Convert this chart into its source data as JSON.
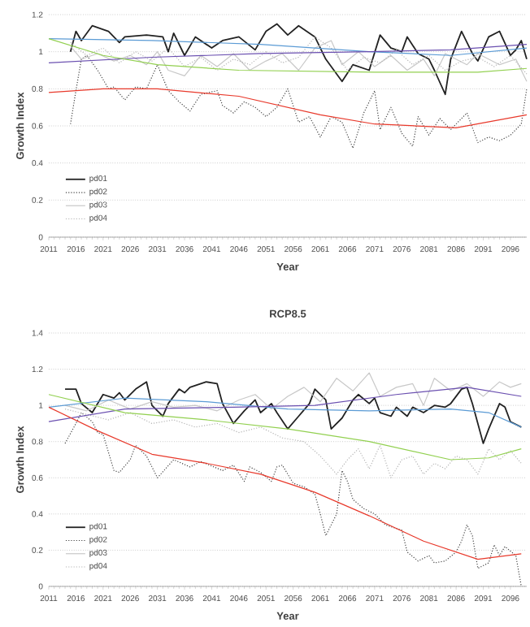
{
  "chart_data": [
    {
      "type": "line",
      "xlabel": "Year",
      "ylabel": "Growth Index",
      "xlim": [
        2011,
        2099
      ],
      "ylim": [
        0,
        1.2
      ],
      "xticks": [
        2011,
        2016,
        2021,
        2026,
        2031,
        2036,
        2041,
        2046,
        2051,
        2056,
        2061,
        2066,
        2071,
        2076,
        2081,
        2086,
        2091,
        2096
      ],
      "yticks": [
        0,
        0.2,
        0.4,
        0.6,
        0.8,
        1,
        1.2
      ],
      "grid": "y",
      "legend": "bottom left",
      "series": [
        {
          "name": "pd01",
          "color": "#222222",
          "line_style": "solid",
          "x": [
            2015,
            2016,
            2017,
            2019,
            2022,
            2024,
            2025,
            2029,
            2032,
            2033,
            2034,
            2036,
            2038,
            2041,
            2043,
            2046,
            2049,
            2051,
            2053,
            2055,
            2057,
            2060,
            2062,
            2065,
            2067,
            2070,
            2072,
            2074,
            2076,
            2077,
            2079,
            2081,
            2082,
            2084,
            2085,
            2087,
            2089,
            2090,
            2092,
            2094,
            2096,
            2097,
            2098,
            2099
          ],
          "values": [
            1.0,
            1.11,
            1.06,
            1.14,
            1.11,
            1.05,
            1.08,
            1.09,
            1.08,
            1.0,
            1.1,
            0.98,
            1.08,
            1.02,
            1.06,
            1.08,
            1.01,
            1.11,
            1.15,
            1.09,
            1.14,
            1.08,
            0.96,
            0.84,
            0.93,
            0.9,
            1.09,
            1.02,
            1.0,
            1.08,
            0.99,
            0.96,
            0.9,
            0.77,
            0.96,
            1.11,
            0.99,
            0.95,
            1.08,
            1.11,
            0.98,
            1.01,
            1.06,
            0.96
          ]
        },
        {
          "name": "pd02",
          "color": "#444444",
          "line_style": "dotted",
          "x": [
            2015,
            2016,
            2017,
            2018,
            2020,
            2022,
            2023,
            2025,
            2027,
            2029,
            2031,
            2033,
            2035,
            2037,
            2039,
            2042,
            2043,
            2045,
            2047,
            2049,
            2051,
            2053,
            2055,
            2057,
            2059,
            2061,
            2063,
            2065,
            2067,
            2069,
            2071,
            2072,
            2074,
            2076,
            2078,
            2079,
            2081,
            2083,
            2085,
            2088,
            2090,
            2092,
            2094,
            2096,
            2098,
            2099
          ],
          "values": [
            0.61,
            0.79,
            0.96,
            0.98,
            0.9,
            0.8,
            0.81,
            0.74,
            0.81,
            0.8,
            0.93,
            0.79,
            0.73,
            0.68,
            0.77,
            0.79,
            0.71,
            0.67,
            0.73,
            0.7,
            0.65,
            0.7,
            0.8,
            0.62,
            0.65,
            0.54,
            0.65,
            0.62,
            0.48,
            0.67,
            0.79,
            0.58,
            0.7,
            0.56,
            0.49,
            0.65,
            0.55,
            0.64,
            0.58,
            0.67,
            0.51,
            0.54,
            0.52,
            0.55,
            0.61,
            0.8
          ]
        },
        {
          "name": "pd03",
          "color": "#c8c8c8",
          "line_style": "solid",
          "x": [
            2015,
            2017,
            2020,
            2023,
            2026,
            2029,
            2031,
            2033,
            2036,
            2039,
            2042,
            2045,
            2048,
            2051,
            2054,
            2057,
            2060,
            2063,
            2065,
            2068,
            2071,
            2074,
            2077,
            2080,
            2082,
            2084,
            2088,
            2090,
            2094,
            2097,
            2099
          ],
          "values": [
            1.03,
            0.96,
            0.99,
            0.95,
            0.98,
            0.93,
            1.0,
            0.9,
            0.87,
            0.98,
            0.92,
            0.99,
            0.9,
            0.95,
            0.99,
            0.9,
            1.02,
            1.06,
            0.93,
            1.0,
            0.92,
            0.98,
            0.9,
            0.96,
            0.87,
            0.99,
            0.93,
            0.99,
            0.93,
            0.96,
            0.84
          ]
        },
        {
          "name": "pd04",
          "color": "#b4b4b4",
          "line_style": "dotted",
          "x": [
            2015,
            2018,
            2021,
            2024,
            2027,
            2030,
            2033,
            2036,
            2039,
            2042,
            2045,
            2048,
            2051,
            2054,
            2057,
            2060,
            2063,
            2066,
            2069,
            2072,
            2075,
            2078,
            2081,
            2084,
            2087,
            2090,
            2093,
            2096,
            2099
          ],
          "values": [
            1.05,
            0.98,
            1.02,
            0.94,
            1.0,
            0.95,
            1.02,
            0.92,
            0.97,
            0.9,
            0.96,
            0.93,
            1.0,
            0.94,
            0.97,
            1.08,
            1.02,
            0.9,
            0.97,
            0.94,
            1.01,
            0.93,
            0.98,
            0.9,
            0.95,
            0.97,
            0.92,
            0.98,
            0.88
          ]
        },
        {
          "color": "#5b9bd5",
          "line_style": "solid",
          "x": [
            2011,
            2030,
            2050,
            2070,
            2085,
            2099
          ],
          "values": [
            1.07,
            1.06,
            1.04,
            1.0,
            0.98,
            1.02
          ]
        },
        {
          "color": "#6a4fb0",
          "line_style": "solid",
          "x": [
            2011,
            2030,
            2050,
            2070,
            2085,
            2099
          ],
          "values": [
            0.94,
            0.97,
            0.99,
            1.0,
            1.01,
            1.04
          ]
        },
        {
          "color": "#92d050",
          "line_style": "solid",
          "x": [
            2011,
            2021,
            2031,
            2046,
            2071,
            2090,
            2099
          ],
          "values": [
            1.07,
            0.98,
            0.93,
            0.9,
            0.89,
            0.89,
            0.91
          ]
        },
        {
          "color": "#e8392b",
          "line_style": "solid",
          "x": [
            2011,
            2021,
            2031,
            2046,
            2061,
            2071,
            2086,
            2099
          ],
          "values": [
            0.78,
            0.8,
            0.8,
            0.76,
            0.66,
            0.61,
            0.59,
            0.66
          ]
        }
      ]
    },
    {
      "type": "line",
      "title": "RCP8.5",
      "xlabel": "Year",
      "ylabel": "Growth Index",
      "xlim": [
        2011,
        2099
      ],
      "ylim": [
        0,
        1.4
      ],
      "xticks": [
        2011,
        2016,
        2021,
        2026,
        2031,
        2036,
        2041,
        2046,
        2051,
        2056,
        2061,
        2066,
        2071,
        2076,
        2081,
        2086,
        2091,
        2096
      ],
      "yticks": [
        0,
        0.2,
        0.4,
        0.6,
        0.8,
        1,
        1.2,
        1.4
      ],
      "grid": "y",
      "legend": "bottom left",
      "series": [
        {
          "name": "pd01",
          "color": "#222222",
          "line_style": "solid",
          "x": [
            2014,
            2016,
            2017,
            2019,
            2020,
            2021,
            2023,
            2024,
            2025,
            2027,
            2029,
            2030,
            2032,
            2033,
            2035,
            2036,
            2037,
            2039,
            2040,
            2042,
            2043,
            2045,
            2047,
            2049,
            2050,
            2052,
            2053,
            2055,
            2057,
            2059,
            2060,
            2062,
            2063,
            2065,
            2067,
            2068,
            2070,
            2071,
            2072,
            2074,
            2075,
            2077,
            2078,
            2080,
            2082,
            2084,
            2085,
            2087,
            2088,
            2089,
            2091,
            2092,
            2094,
            2095,
            2096,
            2098
          ],
          "values": [
            1.09,
            1.09,
            1.01,
            0.96,
            1.01,
            1.06,
            1.04,
            1.07,
            1.03,
            1.09,
            1.13,
            1.0,
            0.94,
            1.01,
            1.09,
            1.07,
            1.1,
            1.12,
            1.13,
            1.12,
            1.01,
            0.9,
            0.97,
            1.03,
            0.96,
            1.01,
            0.96,
            0.87,
            0.94,
            1.01,
            1.09,
            1.03,
            0.87,
            0.93,
            1.03,
            1.06,
            1.01,
            1.04,
            0.96,
            0.94,
            0.99,
            0.94,
            0.99,
            0.96,
            1.0,
            0.99,
            1.01,
            1.09,
            1.1,
            1.01,
            0.79,
            0.87,
            1.01,
            0.99,
            0.91,
            0.88
          ]
        },
        {
          "name": "pd02",
          "color": "#444444",
          "line_style": "dotted",
          "x": [
            2014,
            2016,
            2017,
            2019,
            2020,
            2021,
            2023,
            2024,
            2026,
            2027,
            2029,
            2031,
            2034,
            2037,
            2039,
            2043,
            2045,
            2047,
            2048,
            2050,
            2052,
            2053,
            2054,
            2056,
            2058,
            2060,
            2061,
            2062,
            2064,
            2065,
            2066,
            2067,
            2069,
            2071,
            2073,
            2074,
            2076,
            2077,
            2079,
            2081,
            2082,
            2084,
            2086,
            2087,
            2088,
            2089,
            2090,
            2092,
            2093,
            2094,
            2095,
            2097,
            2098
          ],
          "values": [
            0.79,
            0.9,
            0.96,
            0.91,
            0.85,
            0.84,
            0.64,
            0.63,
            0.7,
            0.78,
            0.72,
            0.6,
            0.7,
            0.66,
            0.69,
            0.64,
            0.67,
            0.58,
            0.66,
            0.63,
            0.58,
            0.66,
            0.67,
            0.57,
            0.55,
            0.51,
            0.4,
            0.28,
            0.4,
            0.64,
            0.58,
            0.48,
            0.43,
            0.4,
            0.34,
            0.33,
            0.31,
            0.19,
            0.14,
            0.17,
            0.13,
            0.14,
            0.19,
            0.25,
            0.34,
            0.28,
            0.1,
            0.13,
            0.23,
            0.17,
            0.22,
            0.17,
            0
          ]
        },
        {
          "name": "pd03",
          "color": "#c8c8c8",
          "line_style": "solid",
          "x": [
            2014,
            2018,
            2022,
            2026,
            2030,
            2034,
            2038,
            2042,
            2046,
            2049,
            2052,
            2055,
            2058,
            2061,
            2064,
            2067,
            2070,
            2072,
            2075,
            2078,
            2080,
            2082,
            2085,
            2088,
            2091,
            2094,
            2096,
            2098
          ],
          "values": [
            1.0,
            0.97,
            1.03,
            0.98,
            1.02,
            0.99,
            1.0,
            0.97,
            1.03,
            1.06,
            0.98,
            1.05,
            1.1,
            1.02,
            1.15,
            1.08,
            1.18,
            1.05,
            1.1,
            1.12,
            1.0,
            1.15,
            1.08,
            1.12,
            1.05,
            1.13,
            1.1,
            1.12
          ]
        },
        {
          "name": "pd04",
          "color": "#b4b4b4",
          "line_style": "dotted",
          "x": [
            2014,
            2018,
            2022,
            2026,
            2030,
            2034,
            2038,
            2042,
            2046,
            2050,
            2054,
            2058,
            2061,
            2064,
            2066,
            2068,
            2070,
            2072,
            2074,
            2076,
            2078,
            2080,
            2082,
            2084,
            2086,
            2088,
            2090,
            2092,
            2094,
            2096,
            2098
          ],
          "values": [
            0.98,
            0.95,
            0.92,
            0.96,
            0.9,
            0.92,
            0.88,
            0.9,
            0.85,
            0.88,
            0.82,
            0.8,
            0.72,
            0.62,
            0.7,
            0.76,
            0.65,
            0.78,
            0.6,
            0.7,
            0.72,
            0.62,
            0.68,
            0.65,
            0.72,
            0.7,
            0.62,
            0.76,
            0.7,
            0.75,
            0.68
          ]
        },
        {
          "color": "#5b9bd5",
          "line_style": "solid",
          "x": [
            2011,
            2025,
            2040,
            2055,
            2070,
            2085,
            2092,
            2098
          ],
          "values": [
            0.99,
            1.04,
            1.02,
            0.98,
            0.97,
            0.98,
            0.96,
            0.88
          ]
        },
        {
          "color": "#6a4fb0",
          "line_style": "solid",
          "x": [
            2011,
            2025,
            2045,
            2060,
            2075,
            2088,
            2098
          ],
          "values": [
            0.91,
            0.98,
            0.99,
            1.0,
            1.06,
            1.1,
            1.05
          ]
        },
        {
          "color": "#92d050",
          "line_style": "solid",
          "x": [
            2011,
            2025,
            2040,
            2055,
            2070,
            2085,
            2092,
            2098
          ],
          "values": [
            1.06,
            0.96,
            0.92,
            0.87,
            0.8,
            0.7,
            0.71,
            0.76
          ]
        },
        {
          "color": "#e8392b",
          "line_style": "solid",
          "x": [
            2011,
            2020,
            2030,
            2040,
            2050,
            2060,
            2070,
            2080,
            2090,
            2098
          ],
          "values": [
            0.99,
            0.86,
            0.73,
            0.68,
            0.62,
            0.52,
            0.39,
            0.25,
            0.15,
            0.18
          ]
        }
      ]
    }
  ]
}
